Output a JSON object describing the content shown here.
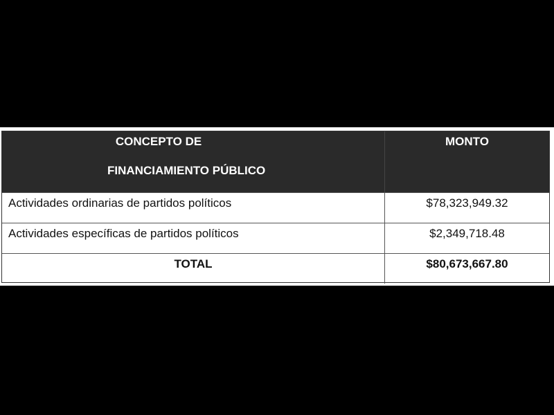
{
  "table": {
    "header": {
      "concept_line1": "CONCEPTO DE",
      "concept_line2": "FINANCIAMIENTO PÚBLICO",
      "amount": "MONTO"
    },
    "rows": [
      {
        "concept": "Actividades ordinarias de partidos políticos",
        "amount": "$78,323,949.32"
      },
      {
        "concept": "Actividades específicas de partidos políticos",
        "amount": "$2,349,718.48"
      }
    ],
    "total": {
      "label": "TOTAL",
      "amount": "$80,673,667.80"
    }
  }
}
